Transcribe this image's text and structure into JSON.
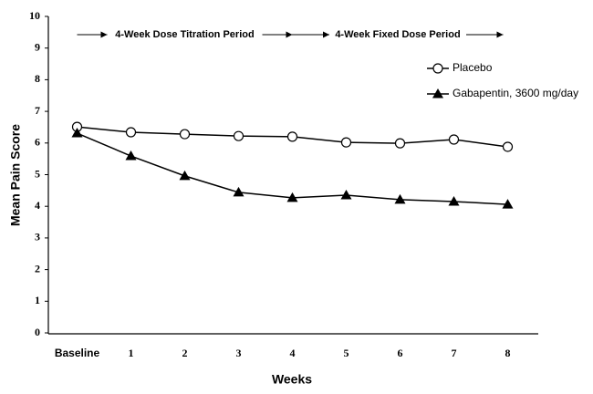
{
  "chart_data": {
    "type": "line",
    "x_label": "Weeks",
    "y_label": "Mean Pain Score",
    "annotations": [
      "4-Week Dose Titration Period",
      "4-Week Fixed Dose Period"
    ],
    "categories": [
      "Baseline",
      "1",
      "2",
      "3",
      "4",
      "5",
      "6",
      "7",
      "8"
    ],
    "series": [
      {
        "name": "Placebo",
        "color": "#000000",
        "marker": "circle",
        "values": [
          6.51,
          6.34,
          6.28,
          6.22,
          6.2,
          6.02,
          5.99,
          6.11,
          5.88
        ]
      },
      {
        "name": "Gabapentin, 3600 mg/day",
        "color": "#000000",
        "marker": "triangle",
        "values": [
          6.31,
          5.59,
          4.96,
          4.44,
          4.27,
          4.35,
          4.21,
          4.15,
          4.06
        ]
      }
    ],
    "ylim": [
      0,
      10
    ],
    "yticks": [
      0,
      1,
      2,
      3,
      4,
      5,
      6,
      7,
      8,
      9,
      10
    ],
    "grid": false,
    "legend": "upper right"
  }
}
